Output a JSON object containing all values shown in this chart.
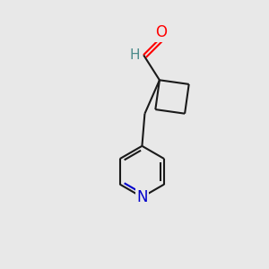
{
  "background_color": "#e8e8e8",
  "bond_color": "#1a1a1a",
  "bond_width": 1.5,
  "atom_colors": {
    "O": "#ff0000",
    "N": "#0000cc",
    "H": "#4a8a8a",
    "C": "#1a1a1a"
  },
  "font_size": 12,
  "fig_bg": "#e8e8e8",
  "xlim": [
    0,
    10
  ],
  "ylim": [
    0,
    10
  ]
}
